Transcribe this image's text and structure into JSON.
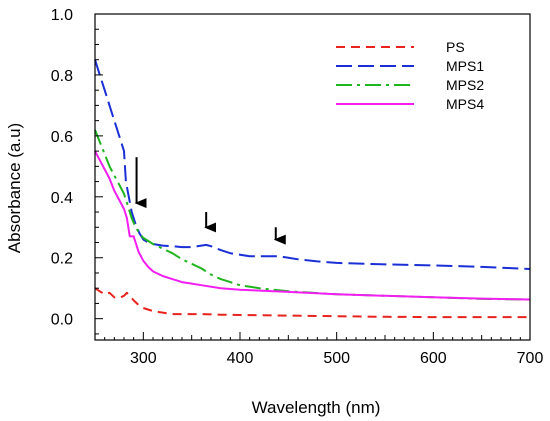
{
  "chart_data": {
    "type": "line",
    "xlabel": "Wavelength (nm)",
    "ylabel": "Absorbance (a.u)",
    "xlim": [
      250,
      700
    ],
    "ylim": [
      -0.07,
      1.0
    ],
    "x_ticks": [
      300,
      400,
      500,
      600,
      700
    ],
    "y_ticks": [
      0.0,
      0.2,
      0.4,
      0.6,
      0.8,
      1.0
    ],
    "y_tick_labels": [
      "0.0",
      "0.2",
      "0.4",
      "0.6",
      "0.8",
      "1.0"
    ],
    "legend_position": "top-right",
    "grid": false,
    "series": [
      {
        "name": "PS",
        "color": "#e8231e",
        "dash": "dash",
        "points": [
          [
            250,
            0.1
          ],
          [
            255,
            0.09
          ],
          [
            260,
            0.08
          ],
          [
            265,
            0.085
          ],
          [
            270,
            0.07
          ],
          [
            275,
            0.068
          ],
          [
            280,
            0.075
          ],
          [
            283,
            0.085
          ],
          [
            286,
            0.075
          ],
          [
            290,
            0.06
          ],
          [
            295,
            0.045
          ],
          [
            300,
            0.035
          ],
          [
            310,
            0.025
          ],
          [
            320,
            0.02
          ],
          [
            330,
            0.015
          ],
          [
            340,
            0.015
          ],
          [
            360,
            0.015
          ],
          [
            380,
            0.013
          ],
          [
            400,
            0.012
          ],
          [
            450,
            0.01
          ],
          [
            500,
            0.008
          ],
          [
            550,
            0.006
          ],
          [
            600,
            0.005
          ],
          [
            650,
            0.005
          ],
          [
            700,
            0.005
          ]
        ]
      },
      {
        "name": "MPS1",
        "color": "#1a2fd6",
        "dash": "longdash",
        "points": [
          [
            250,
            0.85
          ],
          [
            255,
            0.8
          ],
          [
            260,
            0.75
          ],
          [
            265,
            0.7
          ],
          [
            270,
            0.65
          ],
          [
            275,
            0.6
          ],
          [
            280,
            0.55
          ],
          [
            282,
            0.45
          ],
          [
            285,
            0.4
          ],
          [
            288,
            0.35
          ],
          [
            292,
            0.31
          ],
          [
            296,
            0.28
          ],
          [
            300,
            0.26
          ],
          [
            305,
            0.25
          ],
          [
            310,
            0.245
          ],
          [
            320,
            0.24
          ],
          [
            330,
            0.238
          ],
          [
            340,
            0.235
          ],
          [
            350,
            0.235
          ],
          [
            360,
            0.24
          ],
          [
            365,
            0.242
          ],
          [
            370,
            0.238
          ],
          [
            380,
            0.225
          ],
          [
            390,
            0.215
          ],
          [
            400,
            0.21
          ],
          [
            410,
            0.205
          ],
          [
            420,
            0.205
          ],
          [
            430,
            0.205
          ],
          [
            440,
            0.205
          ],
          [
            450,
            0.2
          ],
          [
            460,
            0.195
          ],
          [
            480,
            0.188
          ],
          [
            500,
            0.183
          ],
          [
            550,
            0.178
          ],
          [
            600,
            0.175
          ],
          [
            650,
            0.17
          ],
          [
            700,
            0.163
          ]
        ]
      },
      {
        "name": "MPS2",
        "color": "#1fb51f",
        "dash": "dashdot",
        "points": [
          [
            250,
            0.62
          ],
          [
            255,
            0.58
          ],
          [
            260,
            0.54
          ],
          [
            265,
            0.5
          ],
          [
            270,
            0.47
          ],
          [
            275,
            0.44
          ],
          [
            280,
            0.41
          ],
          [
            284,
            0.37
          ],
          [
            288,
            0.33
          ],
          [
            292,
            0.3
          ],
          [
            296,
            0.28
          ],
          [
            300,
            0.265
          ],
          [
            310,
            0.245
          ],
          [
            320,
            0.23
          ],
          [
            330,
            0.215
          ],
          [
            340,
            0.195
          ],
          [
            350,
            0.18
          ],
          [
            360,
            0.165
          ],
          [
            370,
            0.145
          ],
          [
            380,
            0.13
          ],
          [
            390,
            0.12
          ],
          [
            400,
            0.11
          ],
          [
            420,
            0.1
          ],
          [
            450,
            0.09
          ],
          [
            500,
            0.08
          ],
          [
            550,
            0.075
          ],
          [
            600,
            0.07
          ],
          [
            650,
            0.065
          ],
          [
            700,
            0.063
          ]
        ]
      },
      {
        "name": "MPS4",
        "color": "#f21ef2",
        "dash": "solid",
        "points": [
          [
            250,
            0.55
          ],
          [
            255,
            0.52
          ],
          [
            260,
            0.49
          ],
          [
            265,
            0.46
          ],
          [
            270,
            0.42
          ],
          [
            275,
            0.39
          ],
          [
            280,
            0.36
          ],
          [
            283,
            0.33
          ],
          [
            285,
            0.29
          ],
          [
            286,
            0.27
          ],
          [
            290,
            0.27
          ],
          [
            292,
            0.25
          ],
          [
            295,
            0.22
          ],
          [
            300,
            0.19
          ],
          [
            305,
            0.17
          ],
          [
            310,
            0.155
          ],
          [
            320,
            0.14
          ],
          [
            330,
            0.13
          ],
          [
            340,
            0.12
          ],
          [
            350,
            0.115
          ],
          [
            360,
            0.11
          ],
          [
            380,
            0.1
          ],
          [
            400,
            0.095
          ],
          [
            450,
            0.088
          ],
          [
            500,
            0.08
          ],
          [
            550,
            0.075
          ],
          [
            600,
            0.07
          ],
          [
            650,
            0.066
          ],
          [
            700,
            0.063
          ]
        ]
      }
    ],
    "annotations": [
      {
        "type": "arrow",
        "x": 293,
        "y_from": 0.53,
        "y_to": 0.34
      },
      {
        "type": "arrow",
        "x": 365,
        "y_from": 0.35,
        "y_to": 0.26
      },
      {
        "type": "arrow",
        "x": 437,
        "y_from": 0.3,
        "y_to": 0.22
      }
    ]
  }
}
